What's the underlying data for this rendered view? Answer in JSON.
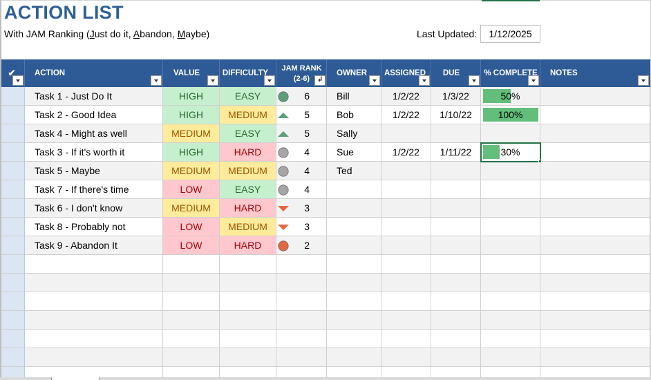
{
  "title": "ACTION LIST",
  "subtitle": {
    "prefix": "With JAM Ranking (",
    "j_u": "J",
    "j_rest": "ust do it, ",
    "a_u": "A",
    "a_rest": "bandon, ",
    "m_u": "M",
    "m_rest": "aybe)"
  },
  "last_updated": {
    "label": "Last Updated:",
    "value": "1/12/2025"
  },
  "headers": {
    "check": "✔",
    "action": "ACTION",
    "value": "VALUE",
    "difficulty": "DIFFICULTY",
    "jam_line1": "JAM RANK",
    "jam_line2": "(2-6)",
    "owner": "OWNER",
    "assigned": "ASSIGNED",
    "due": "DUE",
    "complete": "% COMPLETE",
    "notes": "NOTES"
  },
  "colors": {
    "header_bg": "#2e5b95",
    "title": "#2e5f95",
    "up_triangle": "#5b9e7a",
    "circle_green": "#5b9e7a",
    "circle_gray": "#a6a6a6",
    "down_triangle": "#e2693d",
    "circle_red": "#e2693d",
    "progress": "#63be7b"
  },
  "rows": [
    {
      "action": "Task 1 - Just Do It",
      "value": "HIGH",
      "value_level": "high",
      "difficulty": "EASY",
      "difficulty_level": "easy",
      "icon": "circle-green-icon",
      "rank": "6",
      "owner": "Bill",
      "assigned": "1/2/22",
      "due": "1/3/22",
      "complete": "50%",
      "complete_fraction": 0.5,
      "notes": ""
    },
    {
      "action": "Task 2 - Good Idea",
      "value": "HIGH",
      "value_level": "high",
      "difficulty": "MEDIUM",
      "difficulty_level": "med",
      "icon": "triangle-up-icon",
      "rank": "5",
      "owner": "Bob",
      "assigned": "1/2/22",
      "due": "1/10/22",
      "complete": "100%",
      "complete_fraction": 1.0,
      "notes": ""
    },
    {
      "action": "Task 4 - Might as well",
      "value": "MEDIUM",
      "value_level": "med",
      "difficulty": "EASY",
      "difficulty_level": "easy",
      "icon": "triangle-up-icon",
      "rank": "5",
      "owner": "Sally",
      "assigned": "",
      "due": "",
      "complete": "",
      "complete_fraction": 0,
      "notes": ""
    },
    {
      "action": "Task 3 - If it's worth it",
      "value": "HIGH",
      "value_level": "high",
      "difficulty": "HARD",
      "difficulty_level": "hard",
      "icon": "circle-gray-icon",
      "rank": "4",
      "owner": "Sue",
      "assigned": "1/2/22",
      "due": "1/11/22",
      "complete": "30%",
      "complete_fraction": 0.3,
      "notes": ""
    },
    {
      "action": "Task 5 - Maybe",
      "value": "MEDIUM",
      "value_level": "med",
      "difficulty": "MEDIUM",
      "difficulty_level": "med",
      "icon": "circle-gray-icon",
      "rank": "4",
      "owner": "Ted",
      "assigned": "",
      "due": "",
      "complete": "",
      "complete_fraction": 0,
      "notes": ""
    },
    {
      "action": "Task 7 - If there's time",
      "value": "LOW",
      "value_level": "low",
      "difficulty": "EASY",
      "difficulty_level": "easy",
      "icon": "circle-gray-icon",
      "rank": "4",
      "owner": "",
      "assigned": "",
      "due": "",
      "complete": "",
      "complete_fraction": 0,
      "notes": ""
    },
    {
      "action": "Task 6 - I don't know",
      "value": "MEDIUM",
      "value_level": "med",
      "difficulty": "HARD",
      "difficulty_level": "hard",
      "icon": "triangle-down-icon",
      "rank": "3",
      "owner": "",
      "assigned": "",
      "due": "",
      "complete": "",
      "complete_fraction": 0,
      "notes": ""
    },
    {
      "action": "Task 8 - Probably not",
      "value": "LOW",
      "value_level": "low",
      "difficulty": "MEDIUM",
      "difficulty_level": "med",
      "icon": "triangle-down-icon",
      "rank": "3",
      "owner": "",
      "assigned": "",
      "due": "",
      "complete": "",
      "complete_fraction": 0,
      "notes": ""
    },
    {
      "action": "Task 9 - Abandon It",
      "value": "LOW",
      "value_level": "low",
      "difficulty": "HARD",
      "difficulty_level": "hard",
      "icon": "circle-red-icon",
      "rank": "2",
      "owner": "",
      "assigned": "",
      "due": "",
      "complete": "",
      "complete_fraction": 0,
      "notes": ""
    }
  ]
}
